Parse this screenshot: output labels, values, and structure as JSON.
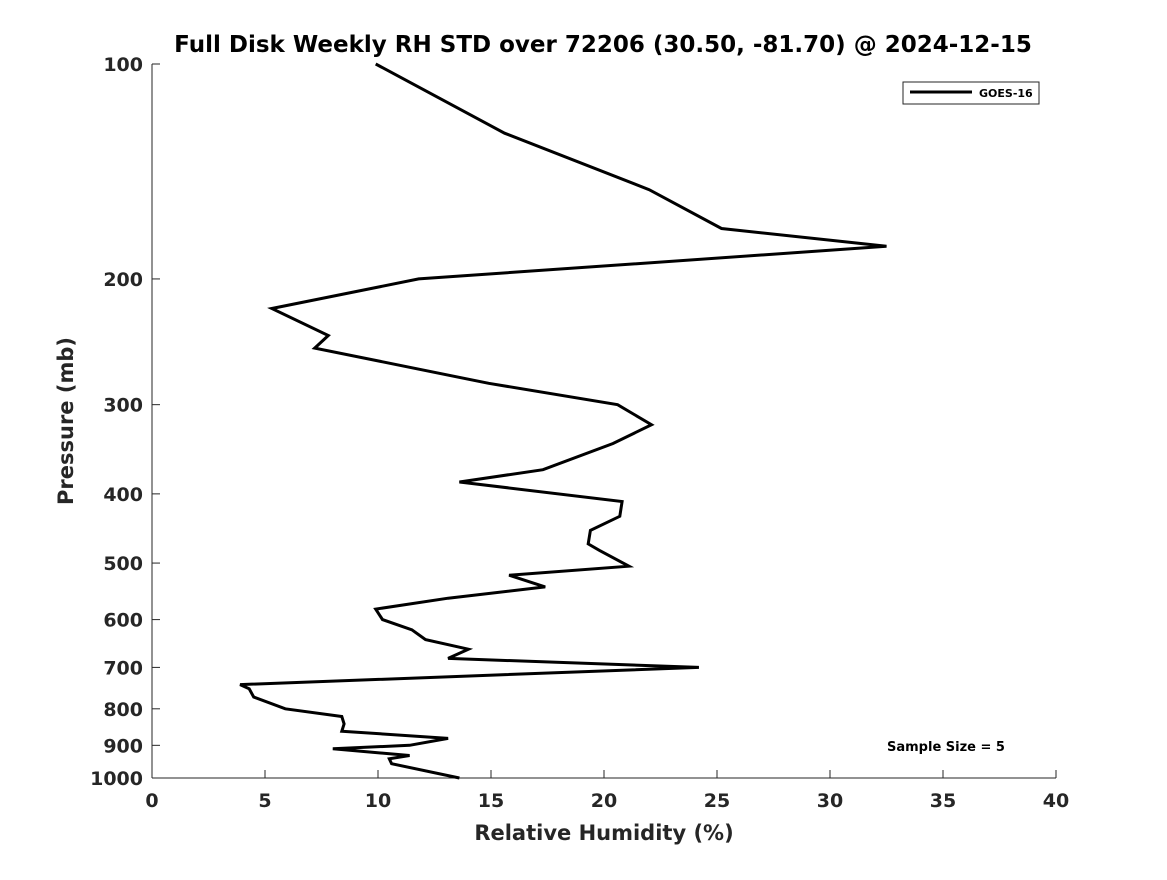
{
  "chart_data": {
    "type": "line",
    "title": "Full Disk Weekly RH STD over 72206 (30.50, -81.70) @ 2024-12-15",
    "xlabel": "Relative Humidity (%)",
    "ylabel": "Pressure (mb)",
    "xlim": [
      0,
      40
    ],
    "ylim": [
      100,
      1000
    ],
    "y_scale": "log",
    "y_reversed": true,
    "grid": false,
    "x_ticks": [
      0,
      5,
      10,
      15,
      20,
      25,
      30,
      35,
      40
    ],
    "y_ticks": [
      100,
      200,
      300,
      400,
      500,
      600,
      700,
      800,
      900,
      1000
    ],
    "legend": {
      "position": "top-right",
      "entries": [
        "GOES-16"
      ]
    },
    "annotation": "Sample Size = 5",
    "series": [
      {
        "name": "GOES-16",
        "color": "#000000",
        "points": [
          [
            9.9,
            100
          ],
          [
            15.6,
            125
          ],
          [
            22.0,
            150
          ],
          [
            25.2,
            170
          ],
          [
            32.5,
            180
          ],
          [
            11.8,
            200
          ],
          [
            5.3,
            220
          ],
          [
            7.8,
            240
          ],
          [
            7.2,
            250
          ],
          [
            14.9,
            280
          ],
          [
            20.6,
            300
          ],
          [
            22.1,
            320
          ],
          [
            20.4,
            340
          ],
          [
            17.3,
            370
          ],
          [
            13.6,
            385
          ],
          [
            20.8,
            410
          ],
          [
            20.7,
            430
          ],
          [
            19.4,
            450
          ],
          [
            19.3,
            470
          ],
          [
            19.8,
            480
          ],
          [
            21.1,
            505
          ],
          [
            15.8,
            520
          ],
          [
            17.4,
            540
          ],
          [
            13.1,
            560
          ],
          [
            9.9,
            580
          ],
          [
            10.2,
            600
          ],
          [
            11.5,
            620
          ],
          [
            12.1,
            640
          ],
          [
            14.0,
            660
          ],
          [
            13.1,
            680
          ],
          [
            24.2,
            700
          ],
          [
            3.9,
            740
          ],
          [
            4.3,
            750
          ],
          [
            4.5,
            770
          ],
          [
            5.9,
            800
          ],
          [
            8.4,
            820
          ],
          [
            8.5,
            840
          ],
          [
            8.4,
            860
          ],
          [
            13.1,
            880
          ],
          [
            11.4,
            900
          ],
          [
            8.0,
            910
          ],
          [
            11.4,
            930
          ],
          [
            10.5,
            940
          ],
          [
            10.6,
            955
          ],
          [
            13.6,
            1000
          ]
        ]
      }
    ]
  }
}
